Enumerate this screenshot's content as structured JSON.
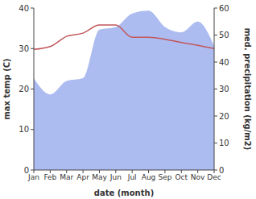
{
  "chart_data": {
    "type": "combo",
    "x_label": "date (month)",
    "y_label": "max temp (C)",
    "y2_label": "med. precipitation (kg/m2)",
    "categories": [
      "Jan",
      "Feb",
      "Mar",
      "Apr",
      "May",
      "Jun",
      "Jul",
      "Aug",
      "Sep",
      "Oct",
      "Nov",
      "Dec"
    ],
    "ylim": [
      0,
      40
    ],
    "yticks": [
      0,
      10,
      20,
      30,
      40
    ],
    "y2lim": [
      0,
      60
    ],
    "y2ticks": [
      0,
      10,
      20,
      30,
      40,
      50,
      60
    ],
    "grid": false,
    "series": [
      {
        "name": "med. precipitation",
        "type": "area",
        "axis": "y2",
        "color": "#adbcf0",
        "values": [
          34,
          28,
          33,
          34,
          52,
          53,
          58,
          59,
          53,
          51,
          55,
          46
        ]
      },
      {
        "name": "max temp",
        "type": "line",
        "axis": "y",
        "color": "#c2575c",
        "values": [
          29.8,
          30.5,
          33.0,
          33.8,
          35.8,
          35.8,
          32.8,
          32.8,
          32.3,
          31.5,
          30.8,
          30.0
        ]
      }
    ]
  }
}
